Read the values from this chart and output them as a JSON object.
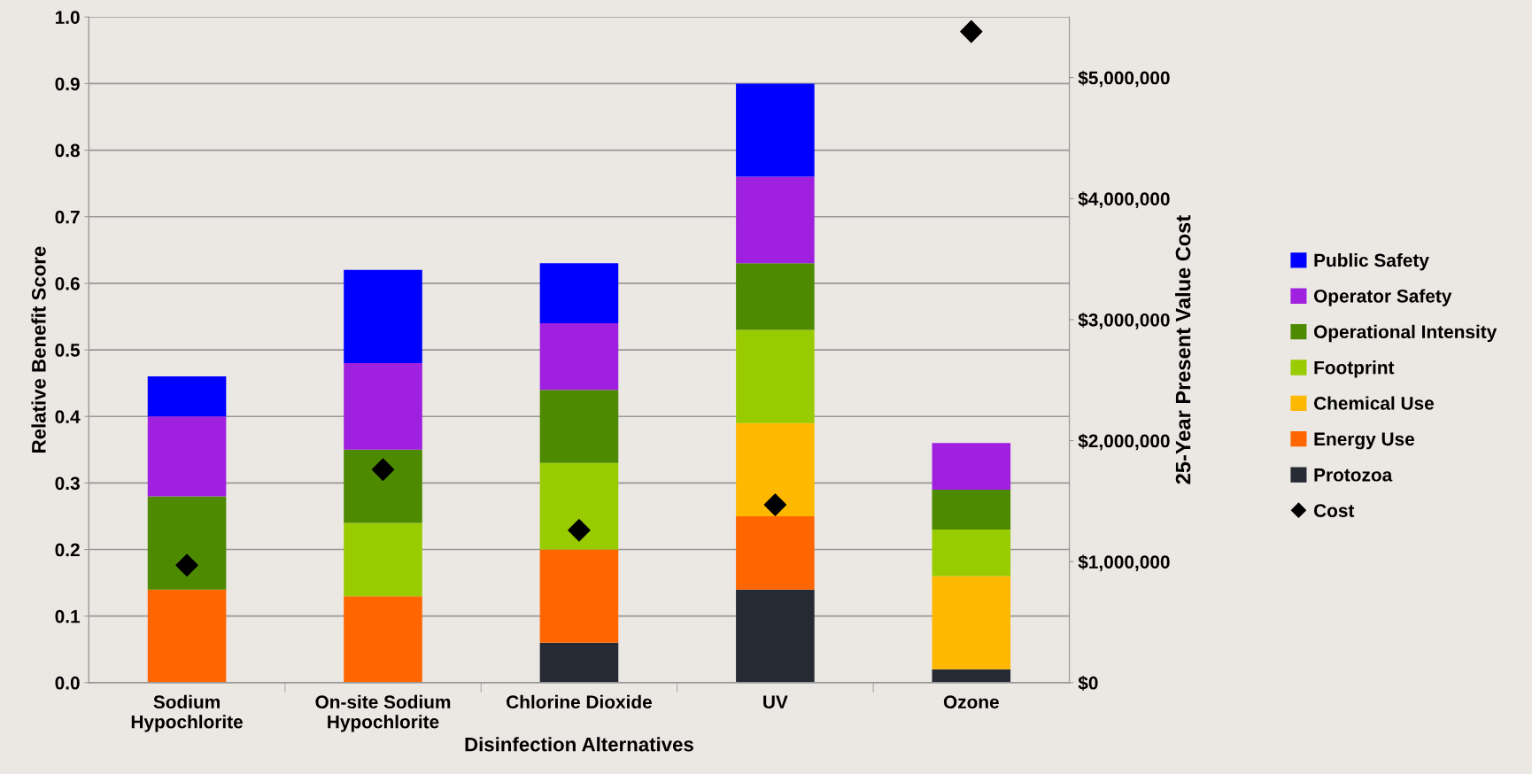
{
  "chart_data": {
    "type": "bar",
    "stacked": true,
    "xlabel": "Disinfection Alternatives",
    "ylabel": "Relative Benefit Score",
    "y2label": "25-Year Present Value Cost",
    "categories": [
      "Sodium\nHypochlorite",
      "On-site Sodium\nHypochlorite",
      "Chlorine Dioxide",
      "UV",
      "Ozone"
    ],
    "series": [
      {
        "name": "Protozoa",
        "color": "#262a33",
        "values": [
          null,
          null,
          0.06,
          0.14,
          0.02
        ]
      },
      {
        "name": "Energy Use",
        "color": "#ff6600",
        "values": [
          0.14,
          0.13,
          0.14,
          0.11,
          null
        ]
      },
      {
        "name": "Chemical Use",
        "color": "#ffb800",
        "values": [
          null,
          null,
          null,
          0.14,
          0.14
        ]
      },
      {
        "name": "Footprint",
        "color": "#99cc00",
        "values": [
          null,
          0.11,
          0.13,
          0.14,
          0.07
        ]
      },
      {
        "name": "Operational Intensity",
        "color": "#4e8a00",
        "values": [
          0.14,
          0.11,
          0.11,
          0.1,
          0.06
        ]
      },
      {
        "name": "Operator Safety",
        "color": "#a020e0",
        "values": [
          0.12,
          0.13,
          0.1,
          0.13,
          0.07
        ]
      },
      {
        "name": "Public Safety",
        "color": "#0000ff",
        "values": [
          0.06,
          0.14,
          0.09,
          0.14,
          null
        ]
      },
      {
        "name": "Cost",
        "type": "scatter",
        "axis": "y2",
        "marker": "diamond",
        "color": "#000000",
        "values": [
          970000,
          1760000,
          1260000,
          1470000,
          5380000
        ]
      }
    ],
    "ylim": [
      0,
      1.0
    ],
    "yticks": [
      {
        "value": 0,
        "label": "0.0"
      },
      0.1,
      0.2,
      0.3,
      0.4,
      0.5,
      0.6,
      0.7,
      0.8,
      0.9,
      {
        "value": 1.0,
        "label": "1.0"
      }
    ],
    "y2lim": [
      0,
      5500000
    ],
    "y2ticks": [
      {
        "value": 0,
        "label": "$0"
      },
      {
        "value": 1000000,
        "label": "$1,000,000"
      },
      {
        "value": 2000000,
        "label": "$2,000,000"
      },
      {
        "value": 3000000,
        "label": "$3,000,000"
      },
      {
        "value": 4000000,
        "label": "$4,000,000"
      },
      {
        "value": 5000000,
        "label": "$5,000,000"
      }
    ],
    "grid": "y",
    "legend": "right"
  }
}
